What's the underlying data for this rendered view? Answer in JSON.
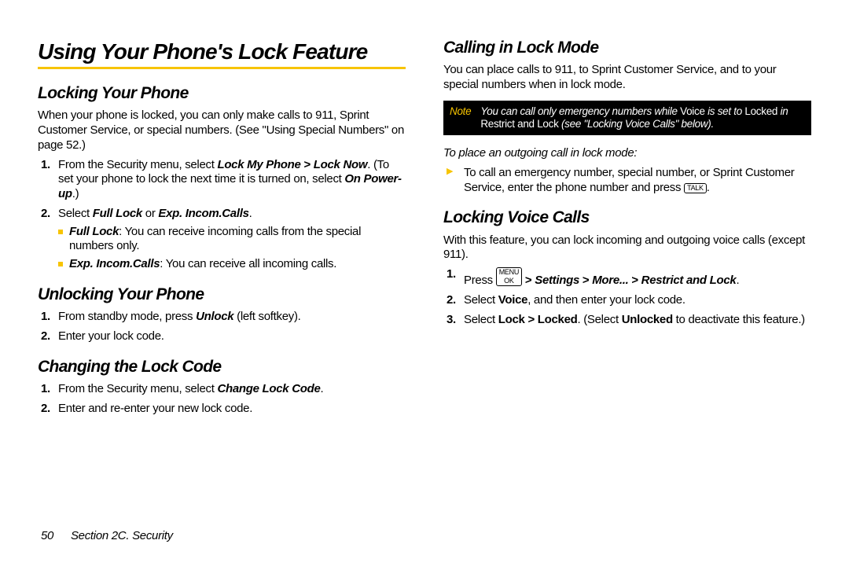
{
  "colors": {
    "accent": "#f7c400",
    "text": "#000000",
    "bg": "#ffffff"
  },
  "main_heading": "Using Your Phone's Lock Feature",
  "left": {
    "locking": {
      "heading": "Locking Your Phone",
      "intro": "When your phone is locked, you can only make calls to 911, Sprint Customer Service, or special numbers. (See \"Using Special Numbers\" on page 52.)",
      "step1_a": "From the Security menu, select ",
      "step1_b": "Lock My Phone",
      "step1_c": " > ",
      "step1_d": "Lock Now",
      "step1_e": ". (To set your phone to lock the next time it is turned on, select ",
      "step1_f": "On Power-up",
      "step1_g": ".)",
      "step2_a": "Select ",
      "step2_b": "Full Lock",
      "step2_c": " or ",
      "step2_d": "Exp. Incom.Calls",
      "step2_e": ".",
      "sub1_a": "Full Lock",
      "sub1_b": ": You can receive incoming calls from the special numbers only.",
      "sub2_a": "Exp. Incom.Calls",
      "sub2_b": ": You can receive all incoming calls."
    },
    "unlocking": {
      "heading": "Unlocking Your Phone",
      "step1_a": "From standby mode, press ",
      "step1_b": "Unlock",
      "step1_c": " (left softkey).",
      "step2": "Enter your lock code."
    },
    "changing": {
      "heading": "Changing the Lock Code",
      "step1_a": "From the Security menu, select ",
      "step1_b": "Change Lock Code",
      "step1_c": ".",
      "step2": "Enter and re-enter your new lock code."
    }
  },
  "right": {
    "calling": {
      "heading": "Calling in Lock Mode",
      "intro": "You can place calls to 911, to Sprint Customer Service, and to your special numbers when in lock mode.",
      "note_label": "Note",
      "note_a": "You can call only emergency numbers while ",
      "note_b": "Voice",
      "note_c": " is set to ",
      "note_d": "Locked",
      "note_e": " in ",
      "note_f": "Restrict and Lock",
      "note_g": " (see \"Locking Voice Calls\" below).",
      "instr": "To place an outgoing call in lock mode:",
      "arrow_a": "To call an emergency number, special number, or Sprint Customer Service, enter the phone number and press ",
      "arrow_key": "TALK",
      "arrow_b": "."
    },
    "voice": {
      "heading": "Locking Voice Calls",
      "intro": "With this feature, you can lock incoming and outgoing voice calls (except 911).",
      "step1_a": "Press ",
      "step1_key1": "MENU",
      "step1_key2": "OK",
      "step1_b": " > ",
      "step1_c": "Settings",
      "step1_d": " > ",
      "step1_e": "More...",
      "step1_f": " > ",
      "step1_g": "Restrict and Lock",
      "step1_h": ".",
      "step2_a": "Select ",
      "step2_b": "Voice",
      "step2_c": ", and then enter your lock code.",
      "step3_a": "Select ",
      "step3_b": "Lock",
      "step3_c": " > ",
      "step3_d": "Locked",
      "step3_e": ". (Select ",
      "step3_f": "Unlocked",
      "step3_g": " to deactivate this feature.)"
    }
  },
  "footer": {
    "page": "50",
    "section": "Section 2C. Security"
  }
}
